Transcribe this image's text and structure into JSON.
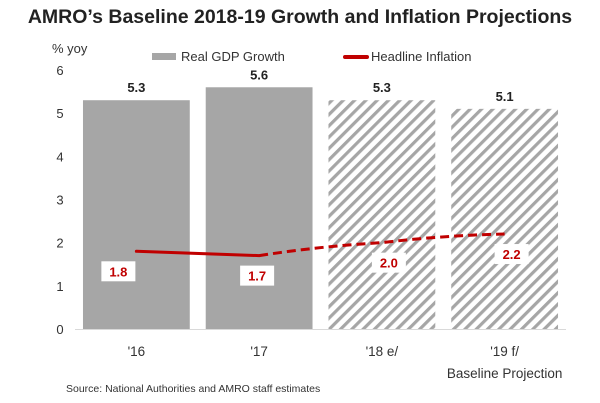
{
  "chart_data": {
    "type": "bar",
    "title": "AMRO’s Baseline 2018-19 Growth and Inflation Projections",
    "ylabel": "% yoy",
    "xlabel": "",
    "ylim": [
      0,
      6
    ],
    "yticks": [
      "0",
      "1",
      "2",
      "3",
      "4",
      "5",
      "6"
    ],
    "categories": [
      "'16",
      "'17",
      "'18 e/",
      "'19 f/"
    ],
    "category_group_label": "Baseline  Projection",
    "projection_start_index": 2,
    "grid": false,
    "legend_position": "top",
    "series": [
      {
        "name": "Real GDP Growth",
        "kind": "bar",
        "values": [
          5.3,
          5.6,
          5.3,
          5.1
        ],
        "labels": [
          "5.3",
          "5.6",
          "5.3",
          "5.1"
        ],
        "color": "#a6a6a6",
        "projection_style": "hatched"
      },
      {
        "name": "Headline Inflation",
        "kind": "line",
        "values": [
          1.8,
          1.7,
          2.0,
          2.2
        ],
        "labels": [
          "1.8",
          "1.7",
          "2.0",
          "2.2"
        ],
        "color": "#c00000",
        "projection_style": "dashed"
      }
    ],
    "source": "Source: National Authorities and AMRO staff estimates"
  }
}
